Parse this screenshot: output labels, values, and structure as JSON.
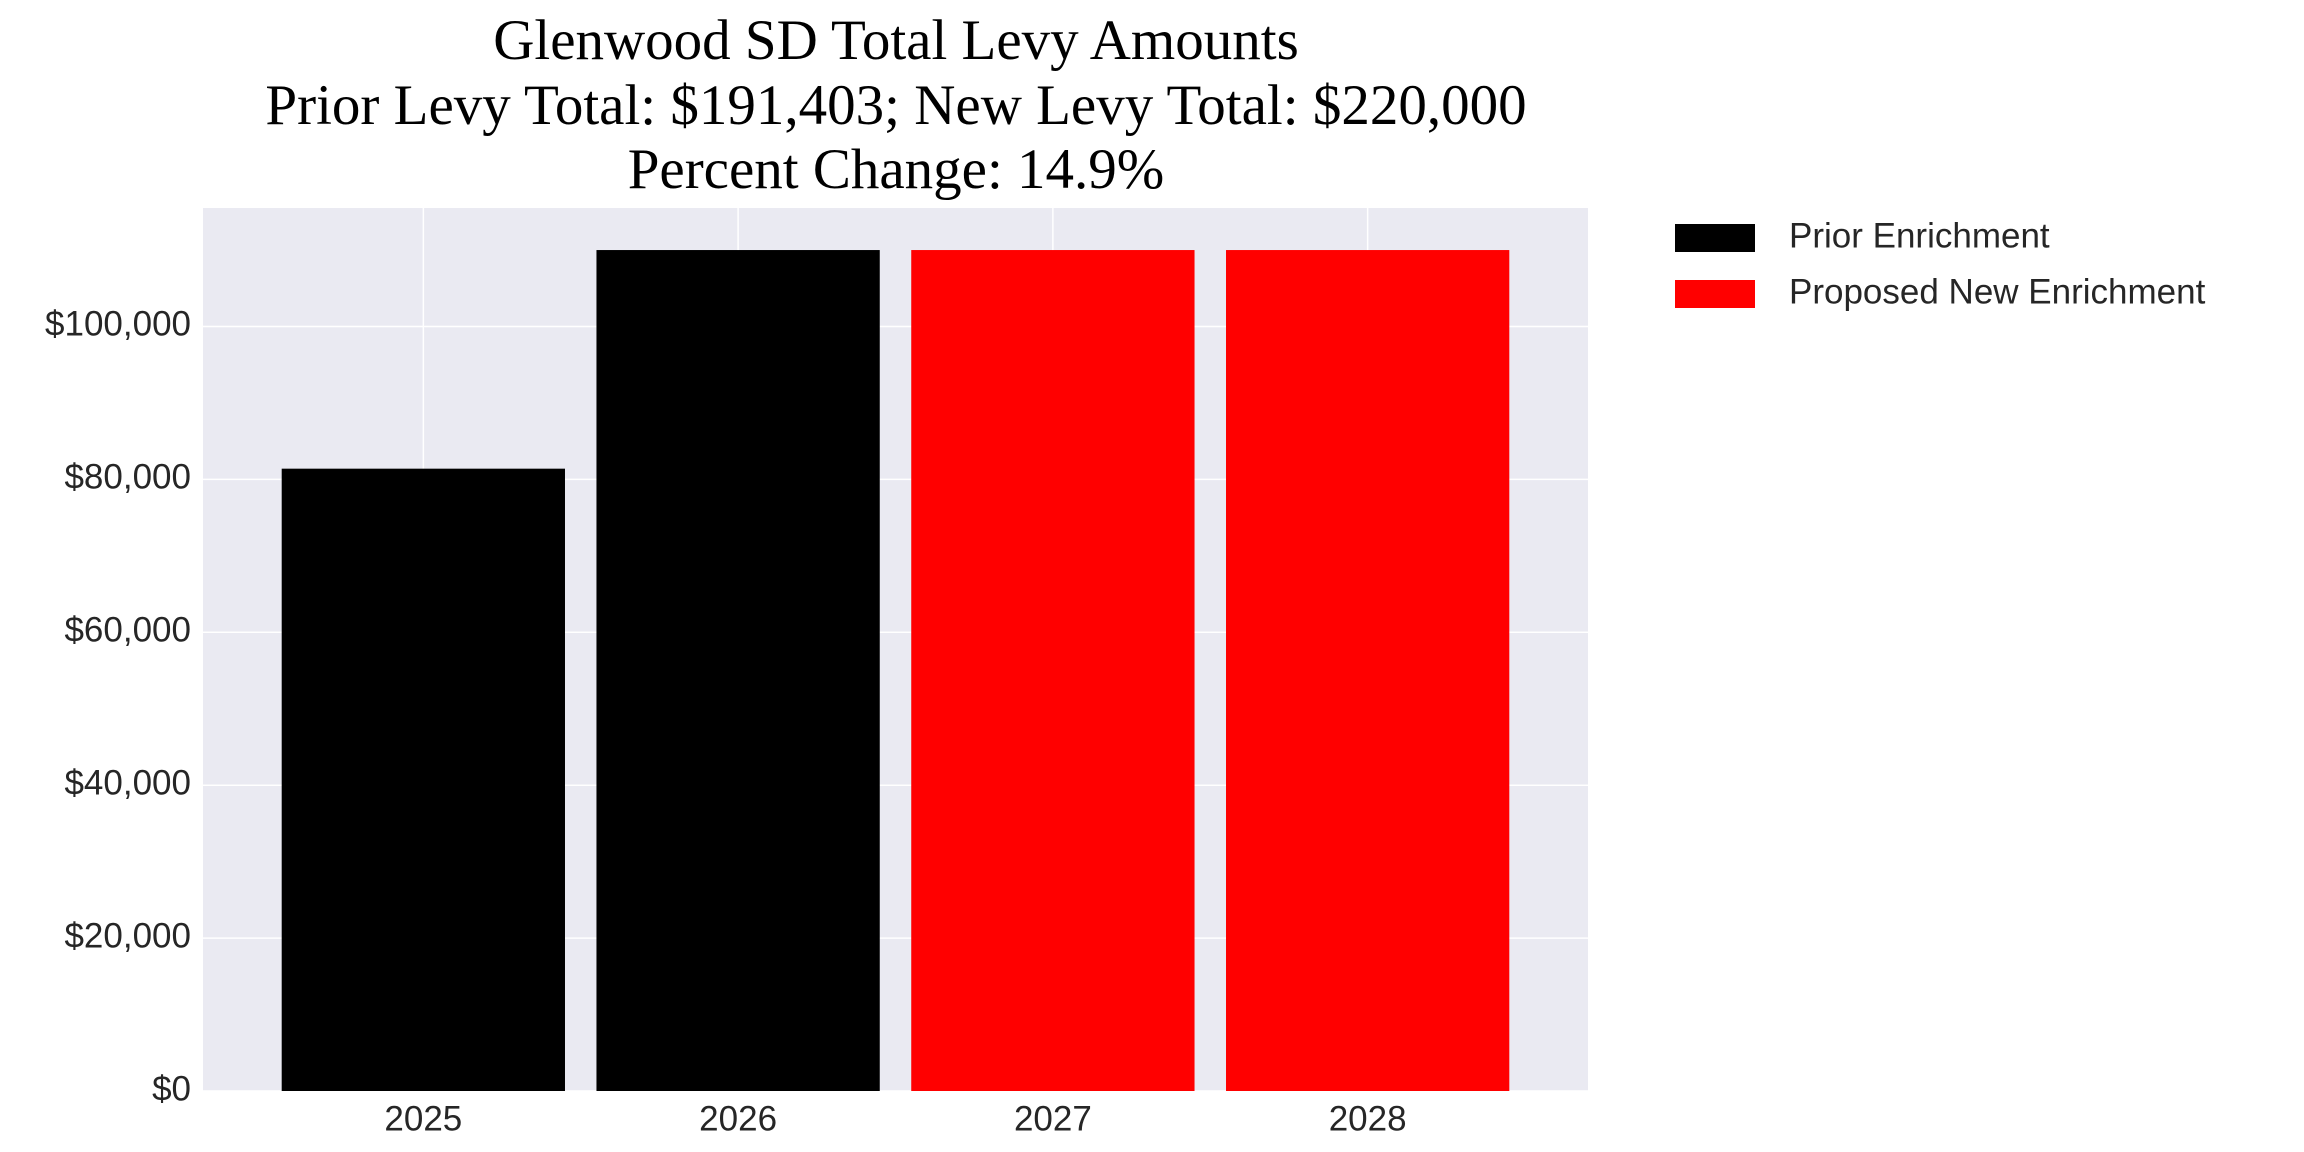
{
  "chart_data": {
    "type": "bar",
    "title": "Glenwood SD Total Levy Amounts",
    "subtitle": [
      "Prior Levy Total:  $191,403; New Levy Total: $220,000",
      "Percent Change: 14.9%"
    ],
    "categories": [
      "2025",
      "2026",
      "2027",
      "2028"
    ],
    "series": [
      {
        "name": "Prior Enrichment",
        "color": "#000000",
        "values": [
          81403,
          110000,
          null,
          null
        ]
      },
      {
        "name": "Proposed New Enrichment",
        "color": "#ff0000",
        "values": [
          null,
          null,
          110000,
          110000
        ]
      }
    ],
    "ylim": [
      0,
      115500
    ],
    "yticks": [
      {
        "value": 0,
        "label": "$0"
      },
      {
        "value": 20000,
        "label": "$20,000"
      },
      {
        "value": 40000,
        "label": "$40,000"
      },
      {
        "value": 60000,
        "label": "$60,000"
      },
      {
        "value": 80000,
        "label": "$80,000"
      },
      {
        "value": 100000,
        "label": "$100,000"
      }
    ],
    "grid": true,
    "legend": "outside-upper-right",
    "background": "#eaeaf2"
  }
}
